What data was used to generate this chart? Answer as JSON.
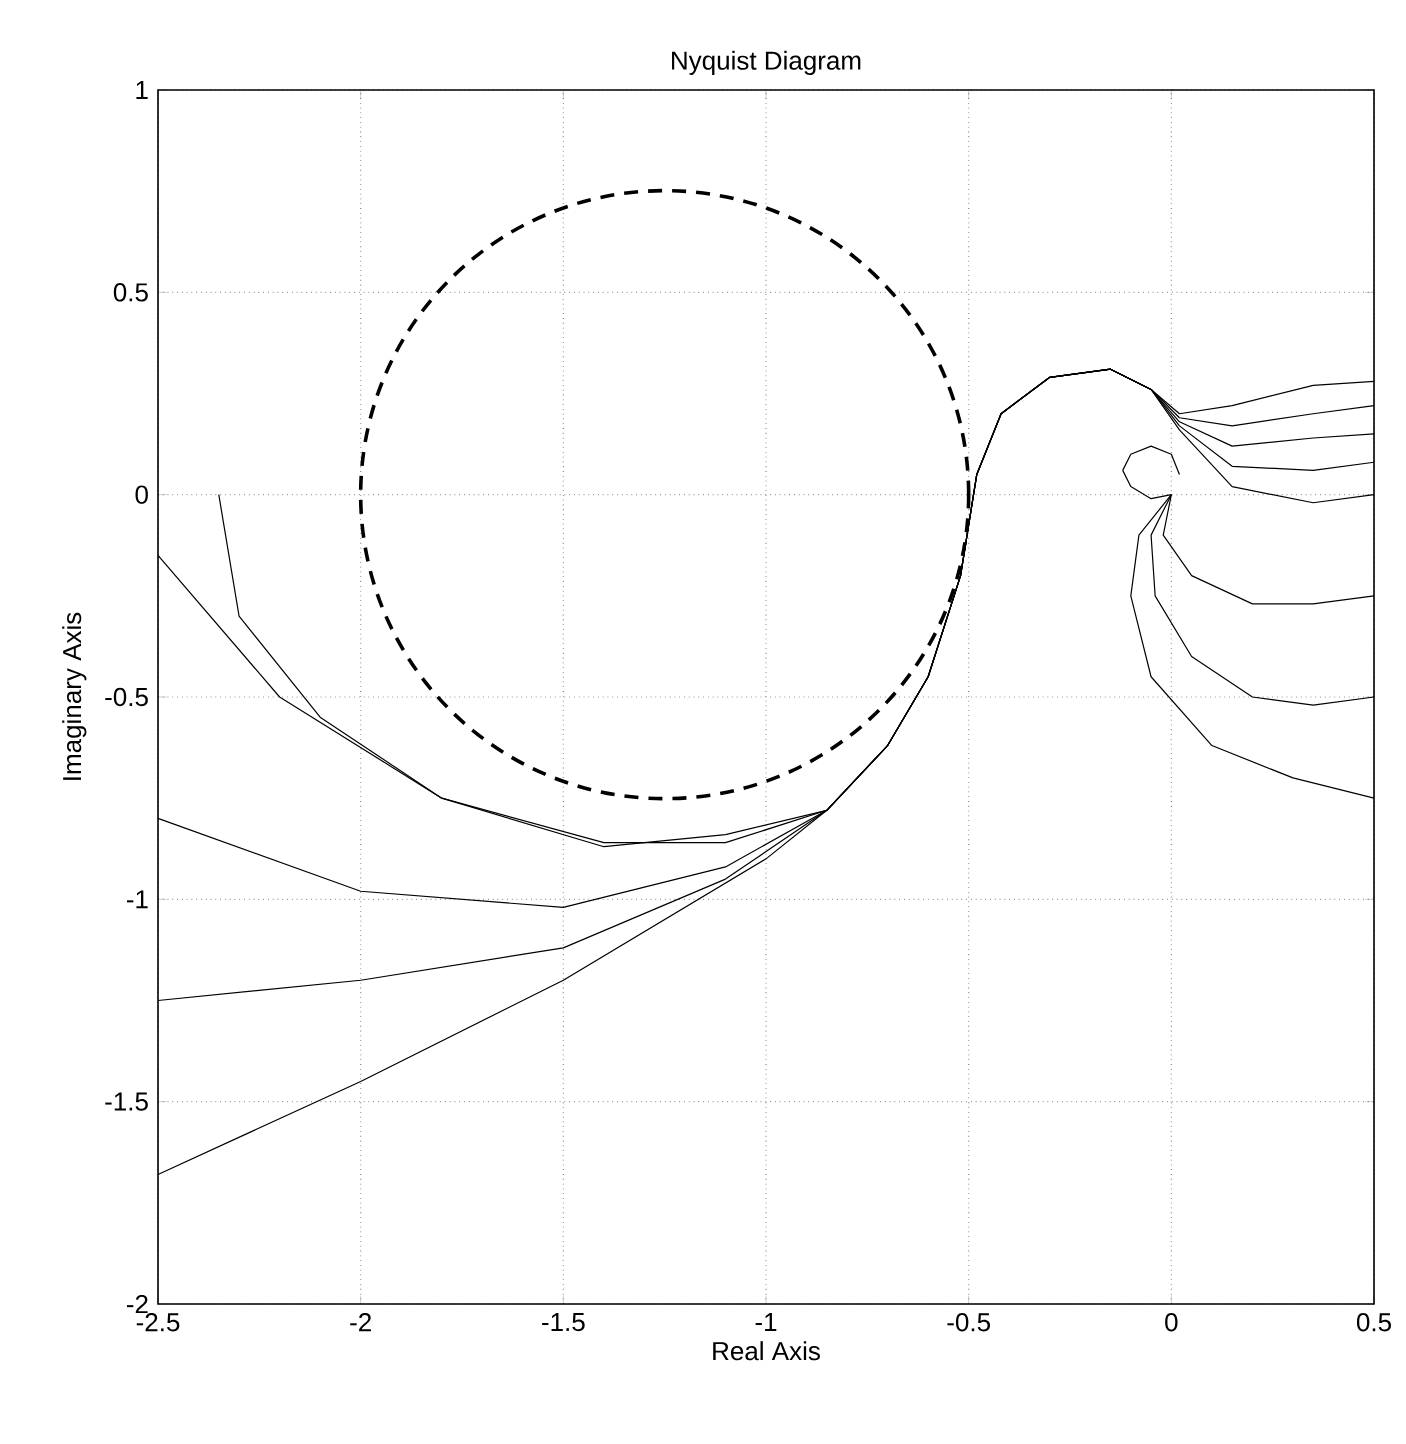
{
  "chart_data": {
    "type": "line",
    "title": "Nyquist Diagram",
    "xlabel": "Real Axis",
    "ylabel": "Imaginary Axis",
    "xlim": [
      -2.5,
      0.5
    ],
    "ylim": [
      -2,
      1
    ],
    "xticks": [
      -2.5,
      -2,
      -1.5,
      -1,
      -0.5,
      0,
      0.5
    ],
    "yticks": [
      -2,
      -1.5,
      -1,
      -0.5,
      0,
      0.5,
      1
    ],
    "grid": true,
    "marker": "none",
    "line_style": "solid",
    "series": [
      {
        "color": "#000000",
        "x": [
          -2.35,
          -2.3,
          -2.1,
          -1.8,
          -1.4,
          -1.1,
          -0.85,
          -0.7,
          -0.6,
          -0.52,
          -0.48,
          -0.42,
          -0.3,
          -0.15,
          -0.05,
          0.02,
          0.15,
          0.35,
          0.5
        ],
        "values": [
          0,
          -0.3,
          -0.55,
          -0.75,
          -0.87,
          -0.84,
          -0.78,
          -0.62,
          -0.45,
          -0.2,
          0.05,
          0.2,
          0.29,
          0.31,
          0.26,
          0.2,
          0.22,
          0.27,
          0.28
        ]
      },
      {
        "color": "#000000",
        "x": [
          -2.5,
          -2.2,
          -1.8,
          -1.4,
          -1.1,
          -0.85,
          -0.7,
          -0.6,
          -0.52,
          -0.48,
          -0.42,
          -0.3,
          -0.15,
          -0.05,
          0.02,
          0.15,
          0.35,
          0.5
        ],
        "values": [
          -0.15,
          -0.5,
          -0.75,
          -0.86,
          -0.86,
          -0.78,
          -0.62,
          -0.45,
          -0.2,
          0.05,
          0.2,
          0.29,
          0.31,
          0.26,
          0.19,
          0.17,
          0.2,
          0.22
        ]
      },
      {
        "color": "#000000",
        "x": [
          -2.5,
          -2,
          -1.5,
          -1.1,
          -0.85,
          -0.7,
          -0.6,
          -0.52,
          -0.48,
          -0.42,
          -0.3,
          -0.15,
          -0.05,
          0.02,
          0.15,
          0.35,
          0.5
        ],
        "values": [
          -0.8,
          -0.98,
          -1.02,
          -0.92,
          -0.78,
          -0.62,
          -0.45,
          -0.2,
          0.05,
          0.2,
          0.29,
          0.31,
          0.26,
          0.18,
          0.12,
          0.14,
          0.15
        ]
      },
      {
        "color": "#000000",
        "x": [
          -2.5,
          -2,
          -1.5,
          -1.1,
          -0.85,
          -0.7,
          -0.6,
          -0.52,
          -0.48,
          -0.42,
          -0.3,
          -0.15,
          -0.05,
          0.02,
          0.15,
          0.35,
          0.5
        ],
        "values": [
          -1.25,
          -1.2,
          -1.12,
          -0.95,
          -0.78,
          -0.62,
          -0.45,
          -0.2,
          0.05,
          0.2,
          0.29,
          0.31,
          0.26,
          0.17,
          0.07,
          0.06,
          0.08
        ]
      },
      {
        "color": "#000000",
        "x": [
          -2.5,
          -2,
          -1.5,
          -1,
          -0.85,
          -0.7,
          -0.6,
          -0.52,
          -0.48,
          -0.42,
          -0.3,
          -0.15,
          -0.05,
          0.02,
          0.15,
          0.35,
          0.5
        ],
        "values": [
          -1.68,
          -1.45,
          -1.2,
          -0.9,
          -0.78,
          -0.62,
          -0.45,
          -0.2,
          0.05,
          0.2,
          0.29,
          0.31,
          0.26,
          0.16,
          0.02,
          -0.02,
          0
        ]
      },
      {
        "color": "#000000",
        "x": [
          0,
          -0.08,
          -0.1,
          -0.05,
          0.1,
          0.3,
          0.5
        ],
        "values": [
          0,
          -0.1,
          -0.25,
          -0.45,
          -0.62,
          -0.7,
          -0.75
        ]
      },
      {
        "color": "#000000",
        "x": [
          0,
          -0.05,
          -0.04,
          0.05,
          0.2,
          0.35,
          0.5
        ],
        "values": [
          0,
          -0.1,
          -0.25,
          -0.4,
          -0.5,
          -0.52,
          -0.5
        ]
      },
      {
        "color": "#000000",
        "x": [
          0,
          -0.02,
          0.05,
          0.2,
          0.35,
          0.5
        ],
        "values": [
          0,
          -0.1,
          -0.2,
          -0.27,
          -0.27,
          -0.25
        ]
      },
      {
        "color": "#000000",
        "x": [
          0,
          -0.05,
          -0.1,
          -0.12
        ],
        "values": [
          0,
          -0.01,
          0.02,
          0.06
        ]
      },
      {
        "color": "#000000",
        "x": [
          -0.12,
          -0.1,
          -0.05,
          0,
          0.02
        ],
        "values": [
          0.06,
          0.1,
          0.12,
          0.1,
          0.05
        ]
      }
    ]
  }
}
